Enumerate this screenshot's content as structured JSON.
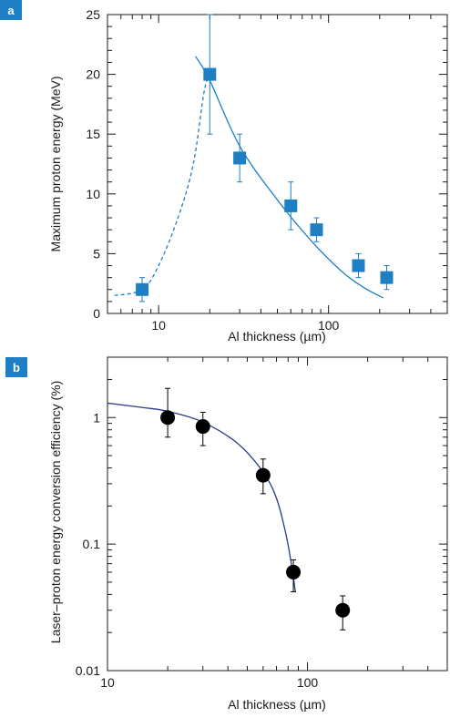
{
  "colors": {
    "series_a": "#1e7fc4",
    "series_b_markers": "#000000",
    "series_b_curve": "#2a3a8c",
    "panel_badge": "#1e7fc4",
    "axes": "#1a1a1a"
  },
  "chart_data": [
    {
      "panel_label": "a",
      "type": "scatter",
      "xlabel": "Al thickness (µm)",
      "ylabel": "Maximum proton energy (MeV)",
      "x_scale": "log",
      "y_scale": "linear",
      "xlim": [
        5,
        500
      ],
      "ylim": [
        0,
        25
      ],
      "x_ticks": [
        {
          "value": 10,
          "label": "10"
        },
        {
          "value": 100,
          "label": "100"
        }
      ],
      "y_ticks": [
        {
          "value": 0,
          "label": "0"
        },
        {
          "value": 5,
          "label": "5"
        },
        {
          "value": 10,
          "label": "10"
        },
        {
          "value": 15,
          "label": "15"
        },
        {
          "value": 20,
          "label": "20"
        },
        {
          "value": 25,
          "label": "25"
        }
      ],
      "grid": false,
      "series": [
        {
          "marker": "square",
          "points": [
            {
              "x": 8,
              "y": 2,
              "ylo": 1,
              "yhi": 3
            },
            {
              "x": 20,
              "y": 20,
              "ylo": 15,
              "yhi": 25
            },
            {
              "x": 30,
              "y": 13,
              "ylo": 11,
              "yhi": 15
            },
            {
              "x": 60,
              "y": 9,
              "ylo": 7,
              "yhi": 11
            },
            {
              "x": 85,
              "y": 7,
              "ylo": 6,
              "yhi": 8
            },
            {
              "x": 150,
              "y": 4,
              "ylo": 3,
              "yhi": 5
            },
            {
              "x": 220,
              "y": 3,
              "ylo": 2,
              "yhi": 4
            }
          ]
        }
      ],
      "curves": [
        {
          "style": "dashed",
          "points": [
            [
              5.5,
              1.5
            ],
            [
              8,
              2
            ],
            [
              10,
              4
            ],
            [
              13,
              8
            ],
            [
              16,
              12.5
            ],
            [
              18.5,
              18.5
            ],
            [
              20,
              20
            ]
          ]
        },
        {
          "style": "solid",
          "points": [
            [
              16.5,
              21.5
            ],
            [
              20,
              19.5
            ],
            [
              30,
              14
            ],
            [
              50,
              9.5
            ],
            [
              80,
              6
            ],
            [
              120,
              3.5
            ],
            [
              160,
              2.2
            ],
            [
              210,
              1.3
            ]
          ]
        }
      ]
    },
    {
      "panel_label": "b",
      "type": "scatter",
      "xlabel": "Al thickness (µm)",
      "ylabel": "Laser–proton energy conversion efficiency (%)",
      "x_scale": "log",
      "y_scale": "log",
      "xlim": [
        10,
        500
      ],
      "ylim": [
        0.01,
        3
      ],
      "x_ticks": [
        {
          "value": 10,
          "label": "10"
        },
        {
          "value": 100,
          "label": "100"
        }
      ],
      "y_ticks": [
        {
          "value": 0.01,
          "label": "0.01"
        },
        {
          "value": 0.1,
          "label": "0.1"
        },
        {
          "value": 1,
          "label": "1"
        }
      ],
      "grid": false,
      "series": [
        {
          "marker": "circle",
          "points": [
            {
              "x": 20,
              "y": 1.0,
              "ylo": 0.7,
              "yhi": 1.7
            },
            {
              "x": 30,
              "y": 0.85,
              "ylo": 0.6,
              "yhi": 1.1
            },
            {
              "x": 60,
              "y": 0.35,
              "ylo": 0.25,
              "yhi": 0.47
            },
            {
              "x": 85,
              "y": 0.06,
              "ylo": 0.042,
              "yhi": 0.075
            },
            {
              "x": 150,
              "y": 0.03,
              "ylo": 0.021,
              "yhi": 0.039
            }
          ]
        }
      ],
      "curves": [
        {
          "style": "solid",
          "points": [
            [
              10,
              1.3
            ],
            [
              15,
              1.2
            ],
            [
              20,
              1.12
            ],
            [
              30,
              0.92
            ],
            [
              45,
              0.62
            ],
            [
              60,
              0.37
            ],
            [
              70,
              0.23
            ],
            [
              78,
              0.12
            ],
            [
              83,
              0.07
            ],
            [
              87,
              0.042
            ]
          ]
        }
      ]
    }
  ]
}
